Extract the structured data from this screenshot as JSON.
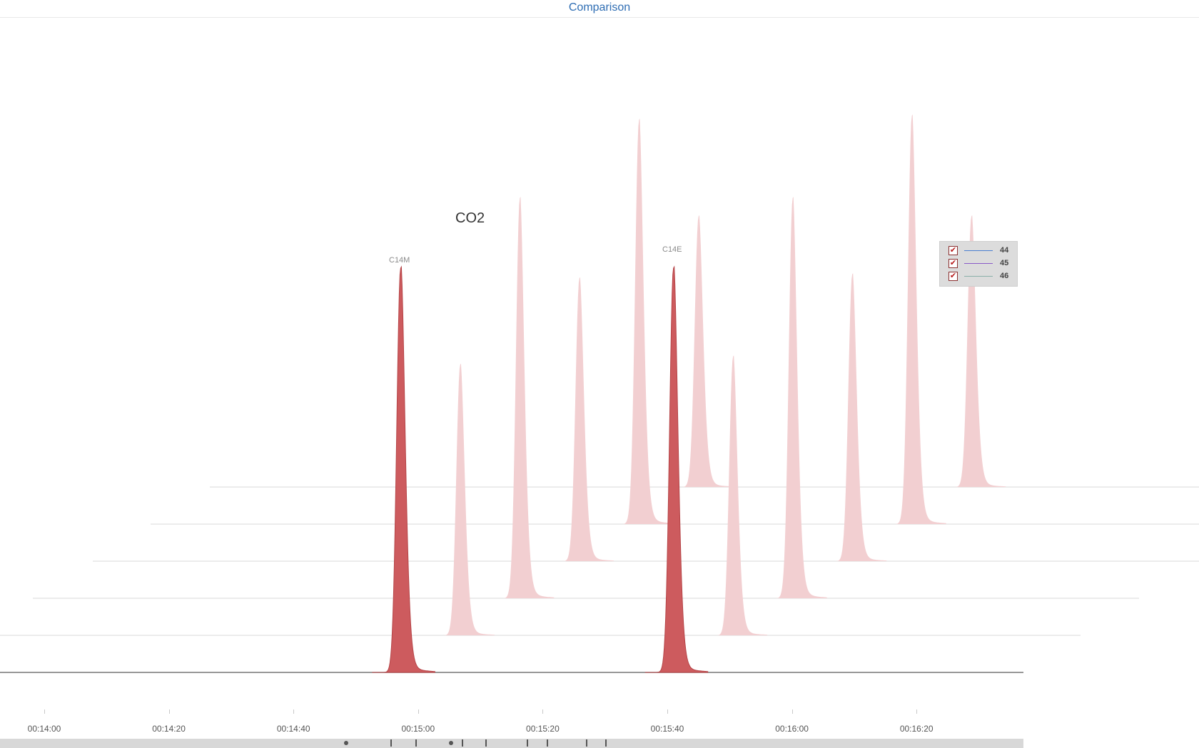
{
  "header": {
    "tab_title": "Comparison"
  },
  "chart_data": {
    "type": "area",
    "title": "CO2",
    "x_unit": "time",
    "x_ticks": [
      "00:14:00",
      "00:14:20",
      "00:14:40",
      "00:15:00",
      "00:15:20",
      "00:15:40",
      "00:16:00",
      "00:16:20"
    ],
    "x_tick_seconds": [
      840,
      860,
      880,
      900,
      920,
      940,
      960,
      980
    ],
    "x_range_seconds": [
      833,
      1000
    ],
    "y_axis_shown": false,
    "grid": false,
    "layout_style": "waterfall (stacked traces, each offset up and to the right)",
    "traces": [
      {
        "peaks": [
          {
            "time_s": 897.2,
            "height": 1.0,
            "label": "C14M"
          },
          {
            "time_s": 941.0,
            "height": 1.0,
            "label": "C14E"
          }
        ],
        "highlighted": true,
        "color": "#cd5b5e"
      },
      {
        "peaks": [
          {
            "time_s": 897.2,
            "height": 0.67
          },
          {
            "time_s": 941.0,
            "height": 0.69
          }
        ],
        "highlighted": false,
        "color": "#f2cfd1"
      },
      {
        "peaks": [
          {
            "time_s": 897.2,
            "height": 0.99
          },
          {
            "time_s": 941.0,
            "height": 0.99
          }
        ],
        "highlighted": false,
        "color": "#f2cfd1"
      },
      {
        "peaks": [
          {
            "time_s": 897.2,
            "height": 0.7
          },
          {
            "time_s": 941.0,
            "height": 0.71
          }
        ],
        "highlighted": false,
        "color": "#f2cfd1"
      },
      {
        "peaks": [
          {
            "time_s": 897.2,
            "height": 1.0
          },
          {
            "time_s": 941.0,
            "height": 1.01
          }
        ],
        "highlighted": false,
        "color": "#f2cfd1"
      },
      {
        "peaks": [
          {
            "time_s": 897.2,
            "height": 0.67
          },
          {
            "time_s": 941.0,
            "height": 0.67
          }
        ],
        "highlighted": false,
        "color": "#f2cfd1"
      }
    ],
    "legend": {
      "position": "right",
      "items": [
        {
          "name": "44",
          "color": "#4a7fd0",
          "checked": true
        },
        {
          "name": "45",
          "color": "#8a5ac8",
          "checked": true
        },
        {
          "name": "46",
          "color": "#8ab0a8",
          "checked": true
        }
      ]
    }
  },
  "colors": {
    "highlight_peak": "#cd5b5e",
    "faded_peak": "#f2cfd1",
    "baseline": "#9a9a9a",
    "tab_title": "#2e6db3"
  }
}
